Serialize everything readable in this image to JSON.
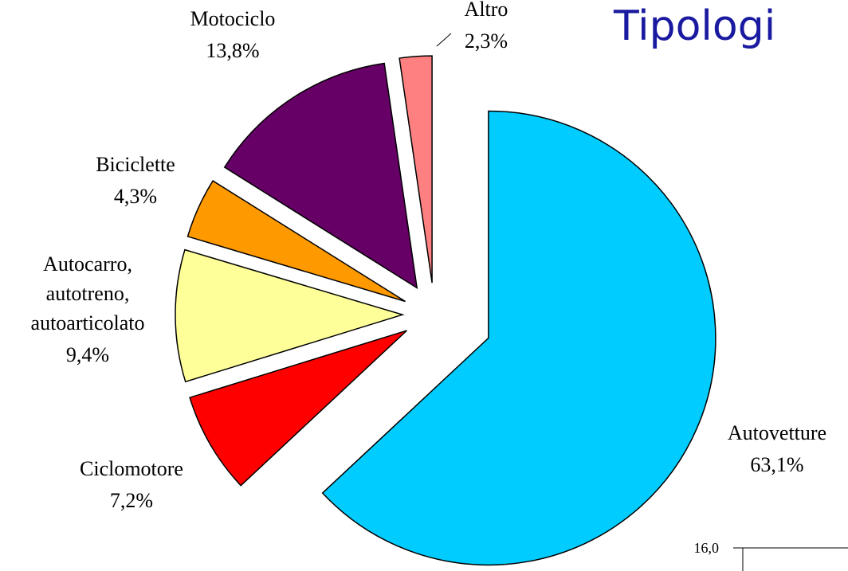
{
  "chart_data": {
    "type": "pie",
    "title": "Tipologi",
    "categories": [
      "Autovetture",
      "Ciclomotore",
      "Autocarro, autotreno, autoarticolato",
      "Biciclette",
      "Motociclo",
      "Altro"
    ],
    "values": [
      63.1,
      7.2,
      9.4,
      4.3,
      13.8,
      2.3
    ],
    "value_labels": [
      "63,1%",
      "7,2%",
      "9,4%",
      "4,3%",
      "13,8%",
      "2,3%"
    ],
    "colors": [
      "#00ccff",
      "#ff0000",
      "#ffff99",
      "#ff9900",
      "#660066",
      "#ff8080"
    ]
  },
  "axis_fragment": {
    "yticks": [
      {
        "value": 16,
        "label": "16,0"
      }
    ]
  }
}
